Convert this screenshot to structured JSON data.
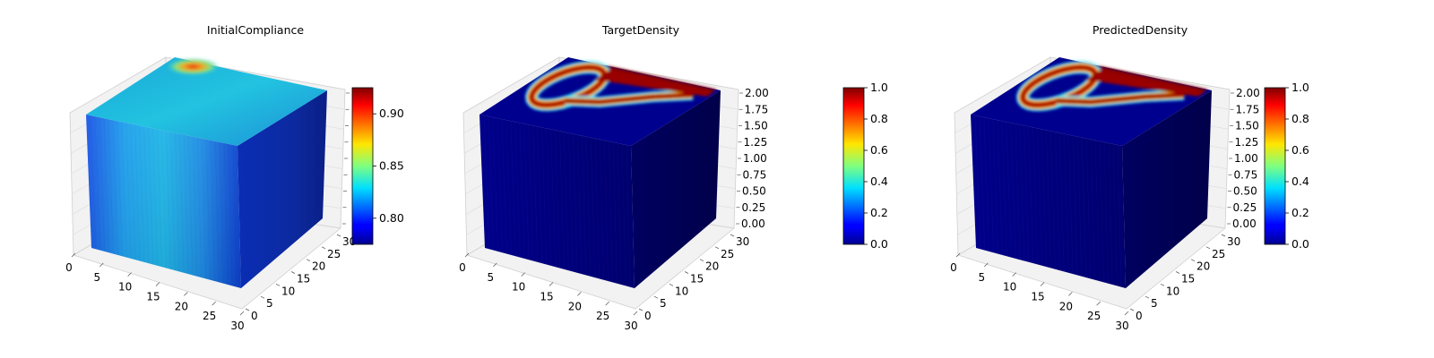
{
  "chart_data": [
    {
      "type": "3d-voxel",
      "title": "InitialCompliance",
      "x_ticks": [
        "0",
        "5",
        "10",
        "15",
        "20",
        "25",
        "30"
      ],
      "y_ticks": [
        "0",
        "5",
        "10",
        "15",
        "20",
        "25",
        "30"
      ],
      "z_ticks": [],
      "colorbar": {
        "colormap": "jet",
        "min": 0.775,
        "max": 0.925,
        "ticks": [
          "0.80",
          "0.85",
          "0.90"
        ]
      },
      "value_range": [
        0.78,
        0.92
      ],
      "top_face": "mostly cyan-blue with a red/yellow hot spot at the back-left corner",
      "front_face": "cyan-blue (~0.83) fading to darker blue (~0.80) toward the right edge",
      "side_face": "dark blue (~0.79)"
    },
    {
      "type": "3d-voxel",
      "title": "TargetDensity",
      "x_ticks": [
        "0",
        "5",
        "10",
        "15",
        "20",
        "25",
        "30"
      ],
      "y_ticks": [
        "0",
        "5",
        "10",
        "15",
        "20",
        "25",
        "30"
      ],
      "z_ticks": [
        "0.00",
        "0.25",
        "0.50",
        "0.75",
        "1.00",
        "1.25",
        "1.50",
        "1.75",
        "2.00"
      ],
      "colorbar": {
        "colormap": "jet",
        "min": 0.0,
        "max": 1.0,
        "ticks": [
          "0.0",
          "0.2",
          "0.4",
          "0.6",
          "0.8",
          "1.0"
        ]
      },
      "value_range": [
        0.0,
        1.0
      ],
      "top_face": "density 1.0 loop structure with a 0.0 hole in the back-left and a band along the back edge",
      "front_face": "density ~0.0",
      "side_face": "density ~0.0"
    },
    {
      "type": "3d-voxel",
      "title": "PredictedDensity",
      "x_ticks": [
        "0",
        "5",
        "10",
        "15",
        "20",
        "25",
        "30"
      ],
      "y_ticks": [
        "0",
        "5",
        "10",
        "15",
        "20",
        "25",
        "30"
      ],
      "z_ticks": [
        "0.00",
        "0.25",
        "0.50",
        "0.75",
        "1.00",
        "1.25",
        "1.50",
        "1.75",
        "2.00"
      ],
      "colorbar": {
        "colormap": "jet",
        "min": 0.0,
        "max": 1.0,
        "ticks": [
          "0.0",
          "0.2",
          "0.4",
          "0.6",
          "0.8",
          "1.0"
        ]
      },
      "value_range": [
        0.0,
        1.0
      ],
      "top_face": "density 1.0 loop structure closely matching target",
      "front_face": "density ~0.0",
      "side_face": "density ~0.0"
    }
  ]
}
